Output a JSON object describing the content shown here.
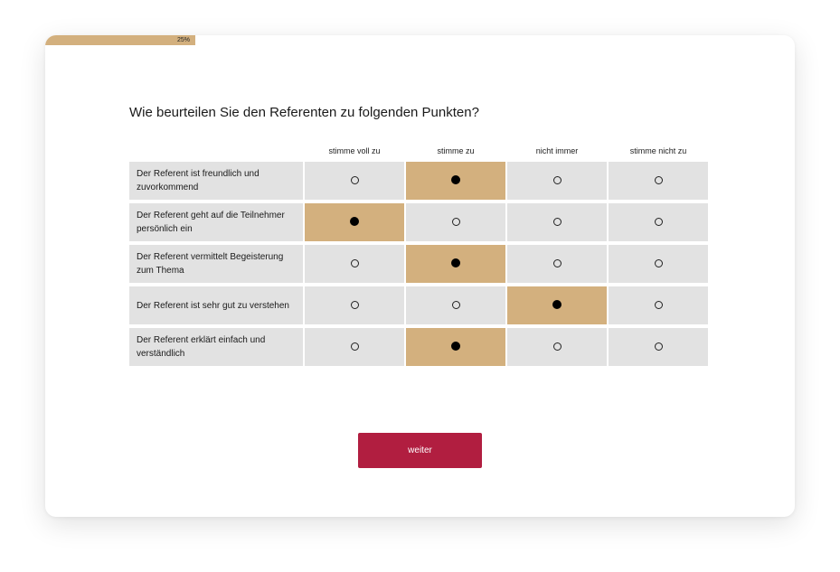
{
  "progress": {
    "label": "25%",
    "value_percent": 25
  },
  "question": "Wie beurteilen Sie den Referenten zu folgenden Punkten?",
  "options": [
    "stimme voll zu",
    "stimme zu",
    "nicht immer",
    "stimme nicht zu"
  ],
  "rows": [
    {
      "statement": "Der Referent ist freundlich und zuvorkommend",
      "selected_index": 1
    },
    {
      "statement": "Der Referent geht auf die Teilnehmer persönlich ein",
      "selected_index": 0
    },
    {
      "statement": "Der Referent vermittelt Begeisterung zum Thema",
      "selected_index": 1
    },
    {
      "statement": "Der Referent ist sehr gut zu verstehen",
      "selected_index": 2
    },
    {
      "statement": "Der Referent erklärt einfach und verständlich",
      "selected_index": 1
    }
  ],
  "next_button": "weiter",
  "colors": {
    "accent_gold": "#d3b07e",
    "button_red": "#b11e40",
    "cell_gray": "#e2e2e2"
  }
}
